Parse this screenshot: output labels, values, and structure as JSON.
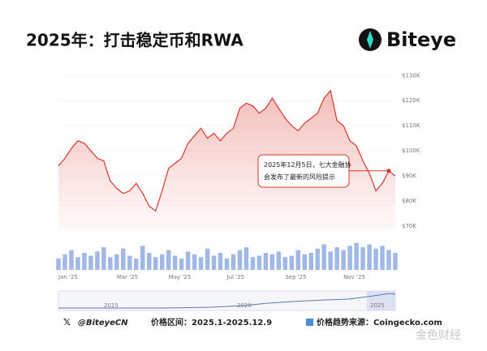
{
  "chart_data": {
    "type": "line",
    "title": "2025年：打击稳定币和RWA",
    "logo": "Biteye",
    "categories": [
      "Jan '25",
      null,
      null,
      null,
      null,
      null,
      null,
      null,
      null,
      "Mar '25",
      null,
      null,
      null,
      null,
      null,
      null,
      null,
      "May '25",
      null,
      null,
      null,
      null,
      null,
      null,
      null,
      null,
      "Jul '25",
      null,
      null,
      null,
      null,
      null,
      null,
      null,
      null,
      "Sep '25",
      null,
      null,
      null,
      null,
      null,
      null,
      null,
      null,
      "Nov '25",
      null,
      null,
      null,
      null,
      null,
      null,
      null,
      null
    ],
    "values": [
      94,
      97,
      101,
      104,
      103,
      100,
      97,
      96,
      88,
      85,
      83,
      84,
      87,
      83,
      78,
      76,
      84,
      93,
      95,
      97,
      103,
      106,
      109,
      105,
      107,
      104,
      107,
      109,
      117,
      119,
      118,
      115,
      117,
      121,
      117,
      113,
      110,
      108,
      111,
      113,
      115,
      121,
      124,
      112,
      110,
      104,
      102,
      96,
      91,
      84,
      87,
      92,
      90
    ],
    "color": "#d9352b",
    "ylim": [
      68,
      133
    ],
    "yticks": [
      {
        "value": 70,
        "label": "$70K"
      },
      {
        "value": 80,
        "label": "$80K"
      },
      {
        "value": 90,
        "label": "$90K"
      },
      {
        "value": 100,
        "label": "$100K"
      },
      {
        "value": 110,
        "label": "$110K"
      },
      {
        "value": 120,
        "label": "$120K"
      },
      {
        "value": 130,
        "label": "$130K"
      }
    ],
    "volume": [
      40,
      55,
      70,
      45,
      60,
      50,
      65,
      80,
      45,
      55,
      75,
      50,
      40,
      85,
      60,
      45,
      55,
      70,
      50,
      40,
      65,
      55,
      45,
      75,
      50,
      60,
      40,
      55,
      70,
      80,
      45,
      50,
      60,
      55,
      65,
      45,
      50,
      70,
      55,
      60,
      75,
      90,
      65,
      80,
      70,
      85,
      95,
      80,
      90,
      75,
      85,
      70,
      60
    ],
    "volume_lim": [
      0,
      100
    ],
    "annotation": "2025年12月5日，七大金融协会发布了最新的风险提示",
    "annotation_index": 51,
    "navigator_years": [
      "2015",
      "2020",
      "2025"
    ],
    "footer": {
      "handle": "@BiteyeCN",
      "range": "价格区间：2025.1-2025.12.9",
      "source": "价格趋势来源：Coingecko.com"
    },
    "watermark": "金色财经"
  }
}
